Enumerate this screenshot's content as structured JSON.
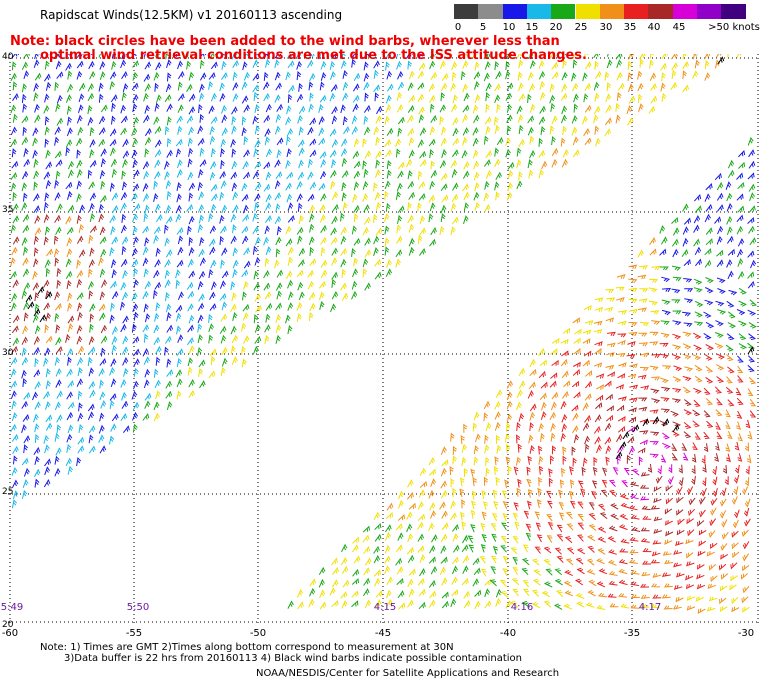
{
  "header": {
    "title": "Rapidscat Winds(12.5KM) v1 20160113 ascending",
    "note_line1": "Note: black circles have been added to the wind barbs, wherever less than",
    "note_line2": "optimal wind retrieval conditions are met due to the ISS attitude changes."
  },
  "legend": {
    "units": ">50 knots",
    "bins": [
      {
        "label": "0",
        "color": "#3c3c3c"
      },
      {
        "label": "5",
        "color": "#8c8c8c"
      },
      {
        "label": "10",
        "color": "#1818e8"
      },
      {
        "label": "15",
        "color": "#18b8e8"
      },
      {
        "label": "20",
        "color": "#18a818"
      },
      {
        "label": "25",
        "color": "#f0e000"
      },
      {
        "label": "30",
        "color": "#f09018"
      },
      {
        "label": "35",
        "color": "#e82020"
      },
      {
        "label": "40",
        "color": "#a82828"
      },
      {
        "label": "45",
        "color": "#d800d8"
      },
      {
        "label": "",
        "color": "#9000c8"
      },
      {
        "label": "",
        "color": "#400080"
      }
    ]
  },
  "axes": {
    "lat_labels": [
      "40",
      "35",
      "30",
      "25",
      "20"
    ],
    "lon_labels": [
      "-60",
      "-55",
      "-50",
      "-45",
      "-40",
      "-35",
      "-30"
    ]
  },
  "time_labels": [
    "5:49",
    "5:50",
    "4:15",
    "4:16",
    "4:17"
  ],
  "footer": {
    "line1": "Note: 1) Times are GMT 2)Times along bottom correspond to measurement at 30N",
    "line2": "3)Data buffer is 22 hrs from 20160113 4) Black wind barbs indicate possible contamination",
    "line3": "NOAA/NESDIS/Center for Satellite Applications and Research"
  }
}
